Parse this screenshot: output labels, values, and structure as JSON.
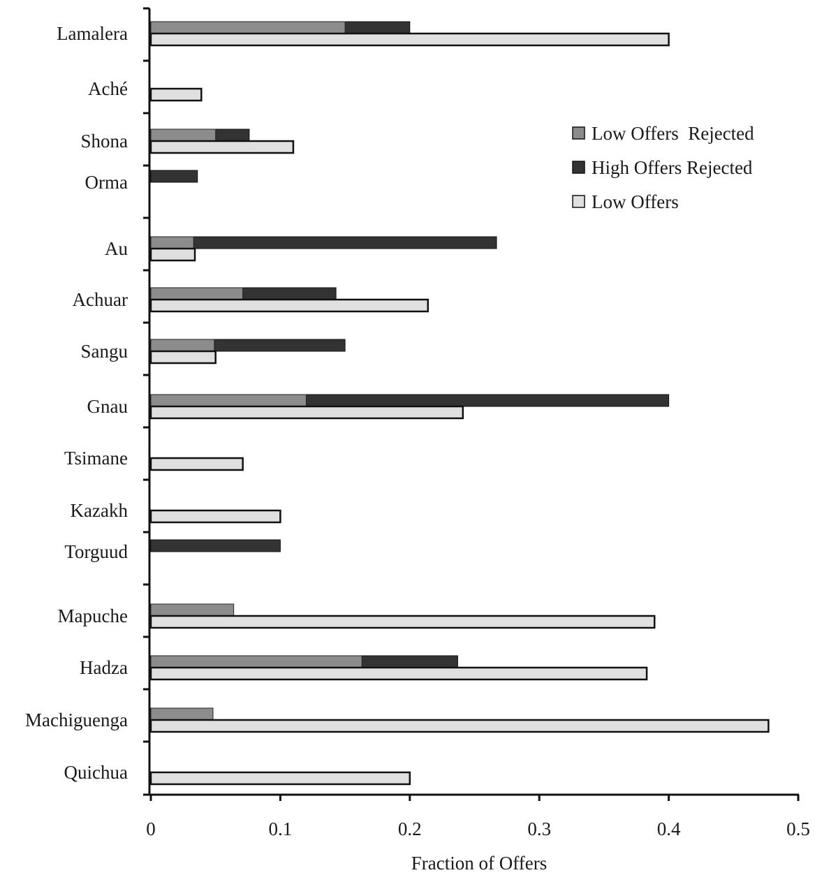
{
  "chart_data": {
    "type": "bar",
    "orientation": "horizontal",
    "xlabel": "Fraction of Offers",
    "xlim": [
      0,
      0.5
    ],
    "xticks": [
      "0",
      "0.1",
      "0.2",
      "0.3",
      "0.4",
      "0.5"
    ],
    "grid": false,
    "legend_position": "top-right",
    "categories": [
      "Lamalera",
      "Aché",
      "Shona",
      "Orma",
      "Au",
      "Achuar",
      "Sangu",
      "Gnau",
      "Tsimane",
      "Kazakh",
      "Torguud",
      "Mapuche",
      "Hadza",
      "Machiguenga",
      "Quichua"
    ],
    "series": [
      {
        "name": "Low Offers  Rejected",
        "color": "#8c8c8c",
        "values": [
          0.15,
          0,
          0.05,
          0,
          0.033,
          0.071,
          0.049,
          0.12,
          0,
          0,
          0,
          0.064,
          0.163,
          0.048,
          0
        ]
      },
      {
        "name": "High Offers Rejected",
        "color": "#333333",
        "values": [
          0.2,
          0,
          0.076,
          0.036,
          0.267,
          0.143,
          0.15,
          0.4,
          0,
          0,
          0.1,
          0,
          0.237,
          0,
          0
        ]
      },
      {
        "name": "Low Offers",
        "color": "#e0e0e0",
        "values": [
          0.4,
          0.039,
          0.11,
          0,
          0.034,
          0.214,
          0.05,
          0.241,
          0.071,
          0.1,
          0,
          0.389,
          0.383,
          0.477,
          0.2
        ]
      }
    ]
  }
}
